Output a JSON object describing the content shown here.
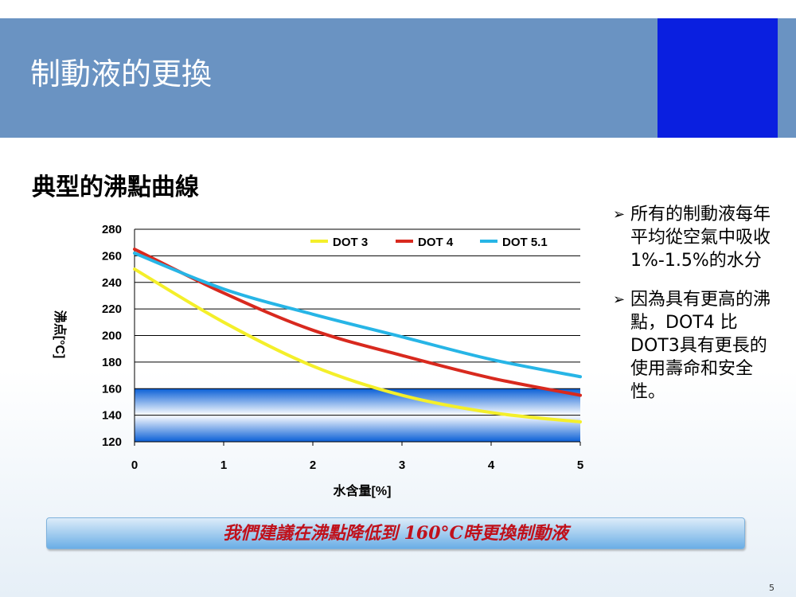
{
  "slide": {
    "title": "制動液的更換",
    "subtitle": "典型的沸點曲線",
    "page_number": "5",
    "banner": "我們建議在沸點降低到 160°C時更換制動液",
    "bullets": [
      "所有的制動液每年平均從空氣中吸收1%-1.5%的水分",
      "因為具有更高的沸點，DOT4 比DOT3具有更長的使用壽命和安全性。"
    ]
  },
  "colors": {
    "header": "#6a93c2",
    "header_accent": "#0a1fe0",
    "dot3": "#f4ef2a",
    "dot4": "#d8291e",
    "dot51": "#27b5e6",
    "banner_text": "#c0111b"
  },
  "chart_data": {
    "type": "line",
    "xlabel": "水含量[%]",
    "ylabel": "沸点[°C]",
    "x": [
      0,
      1,
      2,
      3,
      4,
      5
    ],
    "xlim": [
      0,
      5
    ],
    "ylim": [
      120,
      280
    ],
    "yticks": [
      120,
      140,
      160,
      180,
      200,
      220,
      240,
      260,
      280
    ],
    "xticks": [
      0,
      1,
      2,
      3,
      4,
      5
    ],
    "grid": true,
    "legend_position": "top-right",
    "highlight_band": [
      120,
      160
    ],
    "series": [
      {
        "name": "DOT 3",
        "values": [
          250,
          210,
          177,
          155,
          142,
          135
        ]
      },
      {
        "name": "DOT 4",
        "values": [
          265,
          232,
          204,
          185,
          168,
          155
        ]
      },
      {
        "name": "DOT 5.1",
        "values": [
          262,
          235,
          216,
          199,
          182,
          169
        ]
      }
    ]
  }
}
